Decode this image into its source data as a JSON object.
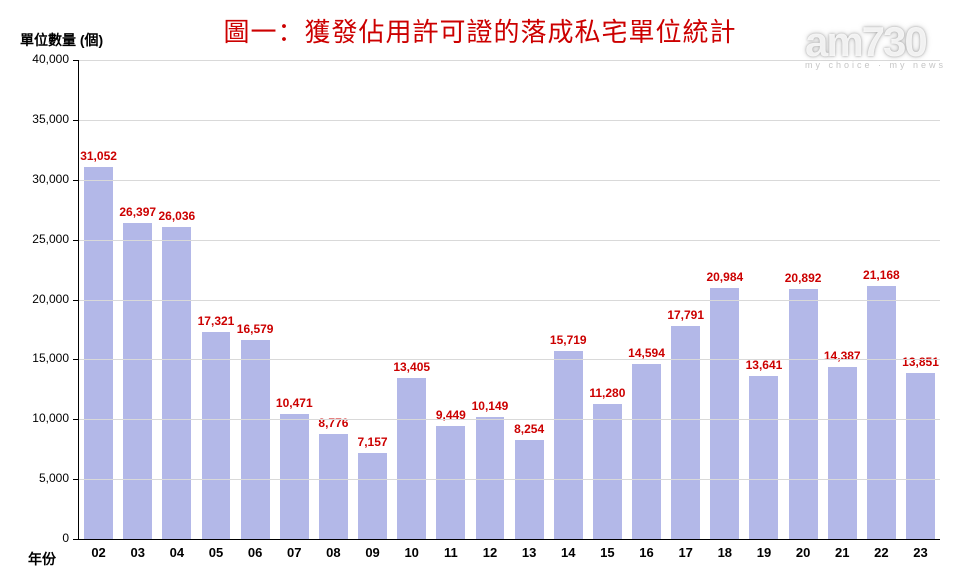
{
  "chart": {
    "type": "bar",
    "title": "圖一：獲發佔用許可證的落成私宅單位統計",
    "title_color": "#cc0000",
    "title_fontsize": 26,
    "y_axis_title": "單位數量 (個)",
    "x_axis_title": "年份",
    "background_color": "#ffffff",
    "grid_color": "#d9d9d9",
    "axis_color": "#000000",
    "bar_color": "#b3b8e8",
    "bar_label_color": "#cc0000",
    "bar_width_ratio": 0.74,
    "label_fontsize": 12,
    "ylim": [
      0,
      40000
    ],
    "ytick_step": 5000,
    "yticks": [
      {
        "value": 0,
        "label": "0"
      },
      {
        "value": 5000,
        "label": "5,000"
      },
      {
        "value": 10000,
        "label": "10,000"
      },
      {
        "value": 15000,
        "label": "15,000"
      },
      {
        "value": 20000,
        "label": "20,000"
      },
      {
        "value": 25000,
        "label": "25,000"
      },
      {
        "value": 30000,
        "label": "30,000"
      },
      {
        "value": 35000,
        "label": "35,000"
      },
      {
        "value": 40000,
        "label": "40,000"
      }
    ],
    "categories": [
      "02",
      "03",
      "04",
      "05",
      "06",
      "07",
      "08",
      "09",
      "10",
      "11",
      "12",
      "13",
      "14",
      "15",
      "16",
      "17",
      "18",
      "19",
      "20",
      "21",
      "22",
      "23"
    ],
    "values": [
      31052,
      26397,
      26036,
      17321,
      16579,
      10471,
      8776,
      7157,
      13405,
      9449,
      10149,
      8254,
      15719,
      11280,
      14594,
      17791,
      20984,
      13641,
      20892,
      14387,
      21168,
      13851
    ],
    "value_labels": [
      "31,052",
      "26,397",
      "26,036",
      "17,321",
      "16,579",
      "10,471",
      "8,776",
      "7,157",
      "13,405",
      "9,449",
      "10,149",
      "8,254",
      "15,719",
      "11,280",
      "14,594",
      "17,791",
      "20,984",
      "13,641",
      "20,892",
      "14,387",
      "21,168",
      "13,851"
    ]
  },
  "watermark": {
    "text": "am730",
    "subtext": "my choice · my news"
  }
}
